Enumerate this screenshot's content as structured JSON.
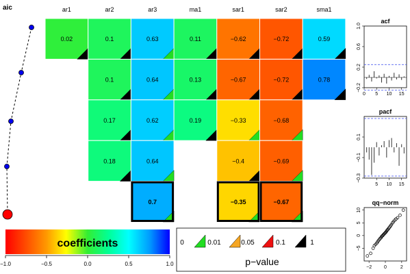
{
  "chart_data": [
    {
      "type": "line",
      "title": "aic",
      "series": [
        {
          "values": [
            5,
            4,
            3,
            2,
            1
          ]
        }
      ],
      "final_point_color": "#ff0000",
      "point_color": "#0000ee"
    },
    {
      "type": "heatmap",
      "columns": [
        "ar1",
        "ar2",
        "ar3",
        "ma1",
        "sar1",
        "sar2",
        "sma1"
      ],
      "rows": [
        [
          0.02,
          0.1,
          0.63,
          0.11,
          -0.62,
          -0.72,
          0.59
        ],
        [
          null,
          0.1,
          0.64,
          0.13,
          -0.67,
          -0.72,
          0.78
        ],
        [
          null,
          0.17,
          0.62,
          0.19,
          -0.33,
          -0.68,
          null
        ],
        [
          null,
          0.18,
          0.64,
          null,
          -0.4,
          -0.69,
          null
        ],
        [
          null,
          null,
          0.7,
          null,
          -0.35,
          -0.67,
          null
        ]
      ],
      "labels": [
        [
          "0.02",
          "0.1",
          "0.63",
          "0.11",
          "−0.62",
          "−0.72",
          "0.59"
        ],
        [
          null,
          "0.1",
          "0.64",
          "0.13",
          "−0.67",
          "−0.72",
          "0.78"
        ],
        [
          null,
          "0.17",
          "0.62",
          "0.19",
          "−0.33",
          "−0.68",
          null
        ],
        [
          null,
          "0.18",
          "0.64",
          null,
          "−0.4",
          "−0.69",
          null
        ],
        [
          null,
          null,
          "0.7",
          null,
          "−0.35",
          "−0.67",
          null
        ]
      ],
      "pvalue_class": [
        [
          "black",
          "black",
          "green",
          "black",
          "black",
          "black",
          "black"
        ],
        [
          null,
          "black",
          "green",
          "black",
          "black",
          "black",
          "black"
        ],
        [
          null,
          "black",
          "green",
          "black",
          "green",
          "green",
          null
        ],
        [
          null,
          "black",
          "green",
          null,
          "black",
          "green",
          null
        ],
        [
          null,
          null,
          "green",
          null,
          "green",
          "green",
          null
        ]
      ],
      "selected_row": 5,
      "colorbar": {
        "title": "coefficients",
        "ticks": [
          "−1.0",
          "−0.5",
          "0.0",
          "0.5",
          "1.0"
        ],
        "range": [
          -1,
          1
        ]
      },
      "pvalue_legend": {
        "title": "p−value",
        "breaks": [
          "0",
          "0.01",
          "0.05",
          "0.1",
          "1"
        ],
        "colors": [
          "#22dd22",
          "#f5a623",
          "#ee1111",
          "#000000"
        ]
      }
    },
    {
      "type": "bar",
      "title": "acf",
      "x": [
        1,
        2,
        3,
        4,
        5,
        6,
        7,
        8,
        9,
        10,
        11,
        12,
        13,
        14,
        15,
        16
      ],
      "values": [
        -0.03,
        0.05,
        -0.08,
        0.12,
        -0.02,
        0.04,
        -0.1,
        0.07,
        -0.12,
        0.03,
        -0.06,
        0.09,
        -0.04,
        0.06,
        -0.05,
        0.02
      ],
      "conf_band": [
        -0.25,
        0.25
      ],
      "xlim": [
        0,
        17
      ],
      "ylim": [
        -0.2,
        1.0
      ],
      "xticks": [
        "0",
        "5",
        "10",
        "15"
      ],
      "yticks": [
        "−0.2",
        "0.2",
        "0.6",
        "1.0"
      ]
    },
    {
      "type": "bar",
      "title": "pacf",
      "x": [
        1,
        2,
        3,
        4,
        5,
        6,
        7,
        8,
        9,
        10,
        11,
        12,
        13,
        14,
        15,
        16
      ],
      "values": [
        -0.05,
        -0.12,
        -0.27,
        -0.15,
        0.05,
        -0.08,
        0.02,
        0.06,
        -0.1,
        0.07,
        0.09,
        -0.05,
        0.04,
        -0.18,
        0.03,
        -0.06
      ],
      "conf_band": [
        -0.28,
        0.28
      ],
      "xlim": [
        0,
        17
      ],
      "ylim": [
        -0.3,
        0.3
      ],
      "xticks": [
        "5",
        "10",
        "15"
      ],
      "yticks": [
        "−0.3",
        "−0.1",
        "0.1"
      ]
    },
    {
      "type": "scatter",
      "title": "qq−norm",
      "x": [
        -2.2,
        -1.8,
        -1.5,
        -1.35,
        -1.2,
        -1.05,
        -0.95,
        -0.85,
        -0.75,
        -0.65,
        -0.55,
        -0.48,
        -0.4,
        -0.32,
        -0.25,
        -0.18,
        -0.1,
        -0.03,
        0.05,
        0.12,
        0.2,
        0.28,
        0.36,
        0.45,
        0.55,
        0.65,
        0.75,
        0.88,
        1.0,
        1.15,
        1.3,
        1.5,
        1.8,
        2.2
      ],
      "y": [
        -8,
        -7,
        -5,
        -4,
        -3.5,
        -3,
        -2.5,
        -2,
        -1.6,
        -1.2,
        -0.9,
        -0.5,
        -0.2,
        0,
        0.3,
        0.5,
        0.8,
        1,
        1.3,
        1.6,
        2,
        2.3,
        2.6,
        3,
        3.4,
        3.9,
        4.3,
        5,
        5.5,
        6,
        6.5,
        7,
        8,
        10
      ],
      "xlim": [
        -2.6,
        2.6
      ],
      "ylim": [
        -10,
        11
      ],
      "xticks": [
        "−2",
        "0",
        "2"
      ],
      "yticks": [
        "−5",
        "0",
        "5",
        "10"
      ]
    }
  ]
}
